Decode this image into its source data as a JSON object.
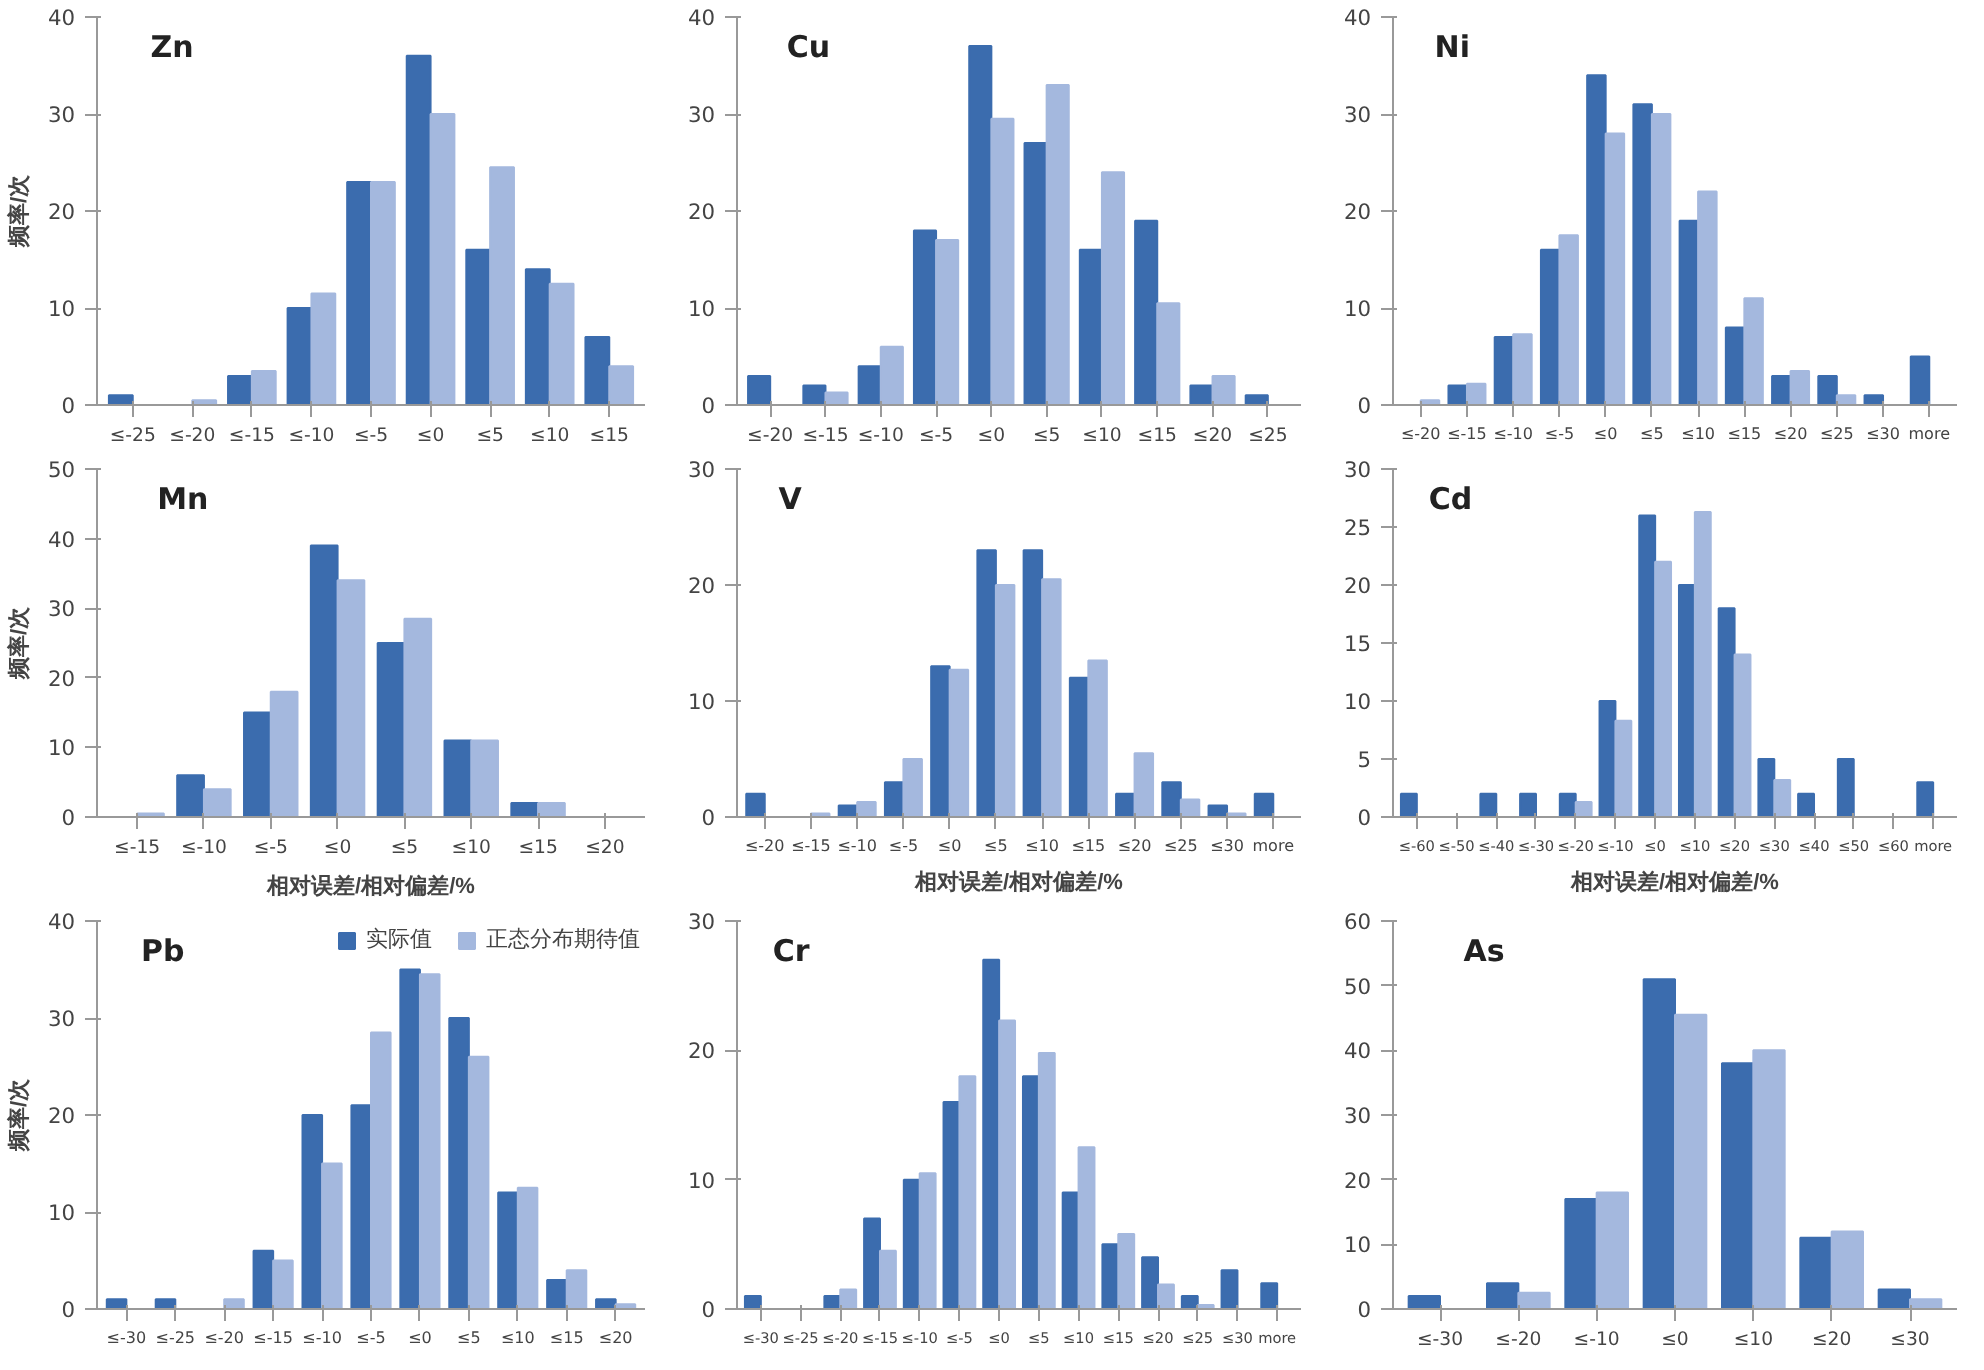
{
  "chart_data": [
    {
      "type": "bar",
      "title": "Zn",
      "ylabel": "频率/次",
      "categories": [
        "≤-25",
        "≤-20",
        "≤-15",
        "≤-10",
        "≤-5",
        "≤0",
        "≤5",
        "≤10",
        "≤15"
      ],
      "ylim": [
        0,
        40
      ],
      "yticks": [
        0,
        10,
        20,
        30,
        40
      ],
      "series": [
        {
          "color": "#3b6cae",
          "values": [
            1,
            0,
            3,
            10,
            23,
            36,
            16,
            14,
            7
          ]
        },
        {
          "color": "#a4b8de",
          "values": [
            0,
            0.5,
            3.5,
            11.5,
            23,
            30,
            24.5,
            12.5,
            4
          ]
        }
      ]
    },
    {
      "type": "bar",
      "title": "Cu",
      "categories": [
        "≤-20",
        "≤-15",
        "≤-10",
        "≤-5",
        "≤0",
        "≤5",
        "≤10",
        "≤15",
        "≤20",
        "≤25"
      ],
      "ylim": [
        0,
        40
      ],
      "yticks": [
        0,
        10,
        20,
        30,
        40
      ],
      "series": [
        {
          "color": "#3b6cae",
          "values": [
            3,
            2,
            4,
            18,
            37,
            27,
            16,
            19,
            2,
            1
          ]
        },
        {
          "color": "#a4b8de",
          "values": [
            0,
            1.3,
            6,
            17,
            29.5,
            33,
            24,
            10.5,
            3,
            0
          ]
        }
      ]
    },
    {
      "type": "bar",
      "title": "Ni",
      "categories": [
        "≤-20",
        "≤-15",
        "≤-10",
        "≤-5",
        "≤0",
        "≤5",
        "≤10",
        "≤15",
        "≤20",
        "≤25",
        "≤30",
        "more"
      ],
      "ylim": [
        0,
        40
      ],
      "yticks": [
        0,
        10,
        20,
        30,
        40
      ],
      "series": [
        {
          "color": "#3b6cae",
          "values": [
            0,
            2,
            7,
            16,
            34,
            31,
            19,
            8,
            3,
            3,
            1,
            5
          ]
        },
        {
          "color": "#a4b8de",
          "values": [
            0.5,
            2.2,
            7.3,
            17.5,
            28,
            30,
            22,
            11,
            3.5,
            1,
            0,
            0
          ]
        }
      ]
    },
    {
      "type": "bar",
      "title": "Mn",
      "ylabel": "频率/次",
      "xlabel": "相对误差/相对偏差/%",
      "categories": [
        "≤-15",
        "≤-10",
        "≤-5",
        "≤0",
        "≤5",
        "≤10",
        "≤15",
        "≤20"
      ],
      "ylim": [
        0,
        50
      ],
      "yticks": [
        0,
        10,
        20,
        30,
        40,
        50
      ],
      "series": [
        {
          "color": "#3b6cae",
          "values": [
            0,
            6,
            15,
            39,
            25,
            11,
            2,
            0
          ]
        },
        {
          "color": "#a4b8de",
          "values": [
            0.5,
            4,
            18,
            34,
            28.5,
            11,
            2,
            0
          ]
        }
      ]
    },
    {
      "type": "bar",
      "title": "V",
      "xlabel": "相对误差/相对偏差/%",
      "categories": [
        "≤-20",
        "≤-15",
        "≤-10",
        "≤-5",
        "≤0",
        "≤5",
        "≤10",
        "≤15",
        "≤20",
        "≤25",
        "≤30",
        "more"
      ],
      "ylim": [
        0,
        30
      ],
      "yticks": [
        0,
        10,
        20,
        30
      ],
      "series": [
        {
          "color": "#3b6cae",
          "values": [
            2,
            0,
            1,
            3,
            13,
            23,
            23,
            12,
            2,
            3,
            1,
            2
          ]
        },
        {
          "color": "#a4b8de",
          "values": [
            0,
            0.3,
            1.3,
            5,
            12.7,
            20,
            20.5,
            13.5,
            5.5,
            1.5,
            0.3,
            0
          ]
        }
      ]
    },
    {
      "type": "bar",
      "title": "Cd",
      "xlabel": "相对误差/相对偏差/%",
      "categories": [
        "≤-60",
        "≤-50",
        "≤-40",
        "≤-30",
        "≤-20",
        "≤-10",
        "≤0",
        "≤10",
        "≤20",
        "≤30",
        "≤40",
        "≤50",
        "≤60",
        "more"
      ],
      "ylim": [
        0,
        30
      ],
      "yticks": [
        0,
        5,
        10,
        15,
        20,
        25,
        30
      ],
      "series": [
        {
          "color": "#3b6cae",
          "values": [
            2,
            0,
            2,
            2,
            2,
            10,
            26,
            20,
            18,
            5,
            2,
            5,
            0,
            3
          ]
        },
        {
          "color": "#a4b8de",
          "values": [
            0,
            0,
            0,
            0,
            1.3,
            8.3,
            22,
            26.3,
            14,
            3.2,
            0,
            0,
            0,
            0
          ]
        }
      ]
    },
    {
      "type": "bar",
      "title": "Pb",
      "ylabel": "频率/次",
      "legend": "top right",
      "categories": [
        "≤-30",
        "≤-25",
        "≤-20",
        "≤-15",
        "≤-10",
        "≤-5",
        "≤0",
        "≤5",
        "≤10",
        "≤15",
        "≤20"
      ],
      "ylim": [
        0,
        40
      ],
      "yticks": [
        0,
        10,
        20,
        30,
        40
      ],
      "series": [
        {
          "name": "实际值",
          "color": "#3b6cae",
          "values": [
            1,
            1,
            0,
            6,
            20,
            21,
            35,
            30,
            12,
            3,
            1
          ]
        },
        {
          "name": "正态分布期待值",
          "color": "#a4b8de",
          "values": [
            0,
            0,
            1,
            5,
            15,
            28.5,
            34.5,
            26,
            12.5,
            4,
            0.5
          ]
        }
      ]
    },
    {
      "type": "bar",
      "title": "Cr",
      "categories": [
        "≤-30",
        "≤-25",
        "≤-20",
        "≤-15",
        "≤-10",
        "≤-5",
        "≤0",
        "≤5",
        "≤10",
        "≤15",
        "≤20",
        "≤25",
        "≤30",
        "more"
      ],
      "ylim": [
        0,
        30
      ],
      "yticks": [
        0,
        10,
        20,
        30
      ],
      "series": [
        {
          "color": "#3b6cae",
          "values": [
            1,
            0,
            1,
            7,
            10,
            16,
            27,
            18,
            9,
            5,
            4,
            1,
            3,
            2
          ]
        },
        {
          "color": "#a4b8de",
          "values": [
            0,
            0,
            1.5,
            4.5,
            10.5,
            18,
            22.3,
            19.8,
            12.5,
            5.8,
            1.9,
            0.3,
            0,
            0
          ]
        }
      ]
    },
    {
      "type": "bar",
      "title": "As",
      "categories": [
        "≤-30",
        "≤-20",
        "≤-10",
        "≤0",
        "≤10",
        "≤20",
        "≤30"
      ],
      "ylim": [
        0,
        60
      ],
      "yticks": [
        0,
        10,
        20,
        30,
        40,
        50,
        60
      ],
      "series": [
        {
          "color": "#3b6cae",
          "values": [
            2,
            4,
            17,
            51,
            38,
            11,
            3
          ]
        },
        {
          "color": "#a4b8de",
          "values": [
            0,
            2.5,
            18,
            45.5,
            40,
            12,
            1.5
          ]
        }
      ]
    }
  ]
}
